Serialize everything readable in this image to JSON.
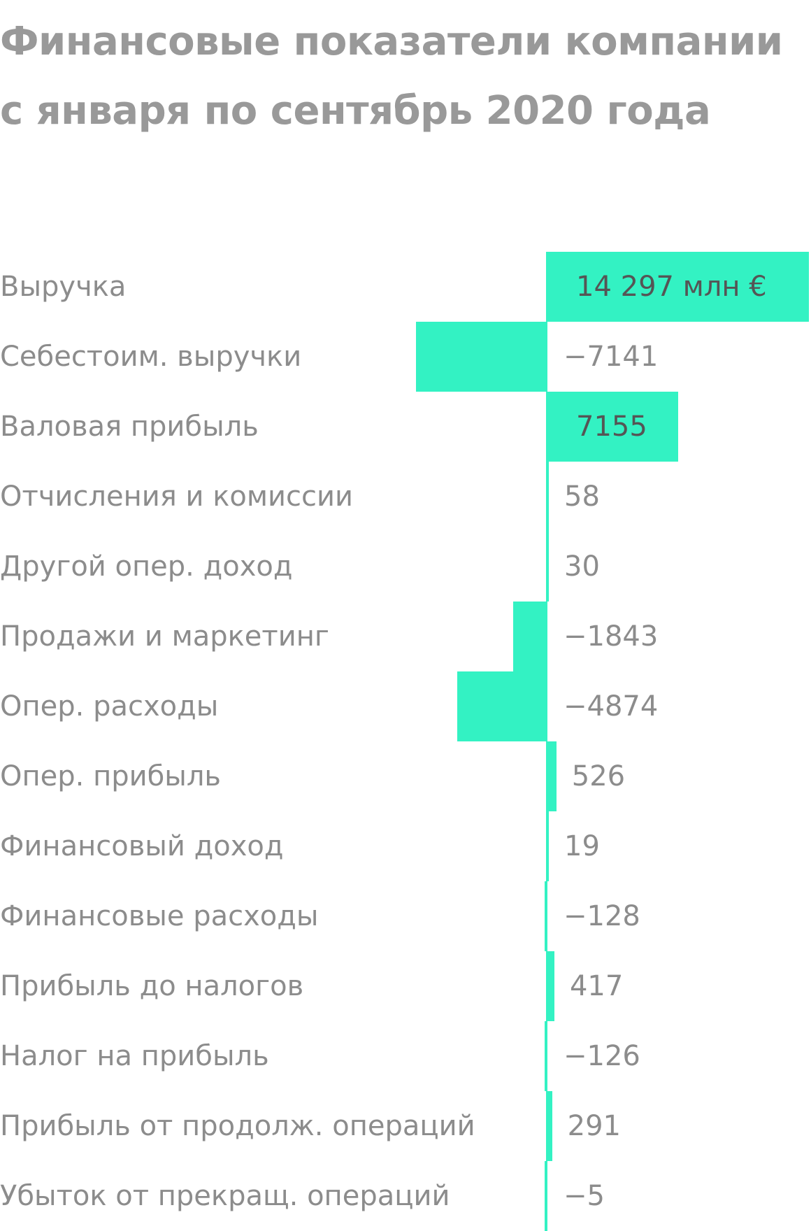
{
  "chart_data": {
    "type": "bar",
    "title": "Финансовые показатели компании с января по сентябрь 2020 года",
    "categories": [
      "Выручка",
      "Себестоим. выручки",
      "Валовая прибыль",
      "Отчисления и комиссии",
      "Другой опер. доход",
      "Продажи и маркетинг",
      "Опер. расходы",
      "Опер. прибыль",
      "Финансовый доход",
      "Финансовые расходы",
      "Прибыль до налогов",
      "Налог на прибыль",
      "Прибыль от продолж. операций",
      "Убыток от прекращ. операций"
    ],
    "values": [
      14297,
      -7141,
      7155,
      58,
      30,
      -1843,
      -4874,
      526,
      19,
      -128,
      417,
      -126,
      291,
      -5
    ],
    "value_labels": [
      "14 297 млн €",
      "−7141",
      "7155",
      "58",
      "30",
      "−1843",
      "−4874",
      "526",
      "19",
      "−128",
      "417",
      "−126",
      "291",
      "−5"
    ],
    "orientation": "horizontal",
    "color": "#33f2c3"
  }
}
